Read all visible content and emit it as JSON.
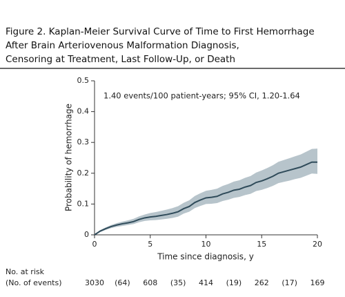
{
  "chart_data": {
    "type": "km",
    "title": [
      "Figure 2. Kaplan-Meier Survival Curve of Time to First Hemorrhage",
      "After Brain Arteriovenous Malformation Diagnosis,",
      "Censoring at Treatment, Last Follow-Up, or Death"
    ],
    "annotation": "1.40 events/100 patient-years; 95% CI, 1.20-1.64",
    "xlabel": "Time since diagnosis, y",
    "ylabel": "Probability of hemorrhage",
    "xlim": [
      0,
      20
    ],
    "xticks": [
      0,
      5,
      10,
      15,
      20
    ],
    "ylim": [
      0,
      0.5
    ],
    "yticks": [
      0,
      0.1,
      0.2,
      0.3,
      0.4,
      0.5
    ],
    "x": [
      0,
      0.5,
      1,
      1.5,
      2,
      2.5,
      3,
      3.5,
      4,
      4.5,
      5,
      5.5,
      6,
      6.5,
      7,
      7.5,
      8,
      8.5,
      9,
      9.5,
      10,
      10.5,
      11,
      11.5,
      12,
      12.5,
      13,
      13.5,
      14,
      14.5,
      15,
      15.5,
      16,
      16.5,
      17,
      17.5,
      18,
      18.5,
      19,
      19.5,
      20
    ],
    "series": [
      {
        "color": "#2f4b5a",
        "band_color": "#b7c4cb",
        "values": [
          0,
          0.012,
          0.02,
          0.027,
          0.032,
          0.036,
          0.039,
          0.043,
          0.05,
          0.055,
          0.058,
          0.06,
          0.063,
          0.066,
          0.07,
          0.075,
          0.085,
          0.092,
          0.105,
          0.113,
          0.12,
          0.122,
          0.125,
          0.133,
          0.138,
          0.145,
          0.148,
          0.155,
          0.16,
          0.17,
          0.175,
          0.182,
          0.19,
          0.2,
          0.205,
          0.21,
          0.215,
          0.22,
          0.228,
          0.236,
          0.236
        ],
        "ci_lower": [
          0,
          0.009,
          0.016,
          0.022,
          0.026,
          0.029,
          0.032,
          0.035,
          0.041,
          0.045,
          0.047,
          0.048,
          0.05,
          0.052,
          0.055,
          0.059,
          0.069,
          0.075,
          0.087,
          0.094,
          0.1,
          0.101,
          0.103,
          0.11,
          0.114,
          0.12,
          0.123,
          0.129,
          0.133,
          0.142,
          0.146,
          0.152,
          0.159,
          0.168,
          0.172,
          0.176,
          0.181,
          0.185,
          0.192,
          0.199,
          0.198
        ],
        "ci_upper": [
          0,
          0.015,
          0.024,
          0.032,
          0.038,
          0.043,
          0.047,
          0.052,
          0.06,
          0.066,
          0.071,
          0.074,
          0.078,
          0.082,
          0.087,
          0.093,
          0.104,
          0.112,
          0.126,
          0.135,
          0.143,
          0.146,
          0.15,
          0.159,
          0.165,
          0.173,
          0.177,
          0.185,
          0.191,
          0.202,
          0.209,
          0.217,
          0.226,
          0.237,
          0.243,
          0.249,
          0.255,
          0.261,
          0.27,
          0.279,
          0.28
        ]
      }
    ],
    "risk_table": {
      "at_risk_label": "No. at risk",
      "events_label": "(No. of events)",
      "times": [
        0,
        5,
        10,
        15,
        20
      ],
      "at_risk": [
        3030,
        608,
        414,
        262,
        169
      ],
      "events": [
        64,
        35,
        19,
        17
      ],
      "value_labels": [
        "(64)",
        "(35)",
        "(19)",
        "(17)"
      ]
    }
  }
}
